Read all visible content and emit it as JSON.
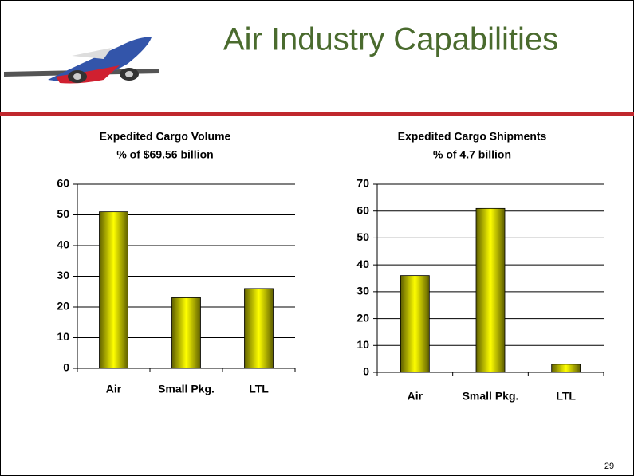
{
  "slide": {
    "title": "Air Industry Capabilities",
    "page_number": "29"
  },
  "chart_data": [
    {
      "type": "bar",
      "title": "Expedited Cargo Volume",
      "subtitle": "% of $69.56 billion",
      "categories": [
        "Air",
        "Small Pkg.",
        "LTL"
      ],
      "values": [
        51,
        23,
        26
      ],
      "color": "#ffff00",
      "ylim": [
        0,
        60
      ],
      "yticks": [
        0,
        10,
        20,
        30,
        40,
        50,
        60
      ],
      "grid": true
    },
    {
      "type": "bar",
      "title": "Expedited Cargo Shipments",
      "subtitle": "% of 4.7 billion",
      "categories": [
        "Air",
        "Small Pkg.",
        "LTL"
      ],
      "values": [
        36,
        61,
        3
      ],
      "color": "#ffff00",
      "ylim": [
        0,
        70
      ],
      "yticks": [
        0,
        10,
        20,
        30,
        40,
        50,
        60,
        70
      ],
      "grid": true
    }
  ]
}
